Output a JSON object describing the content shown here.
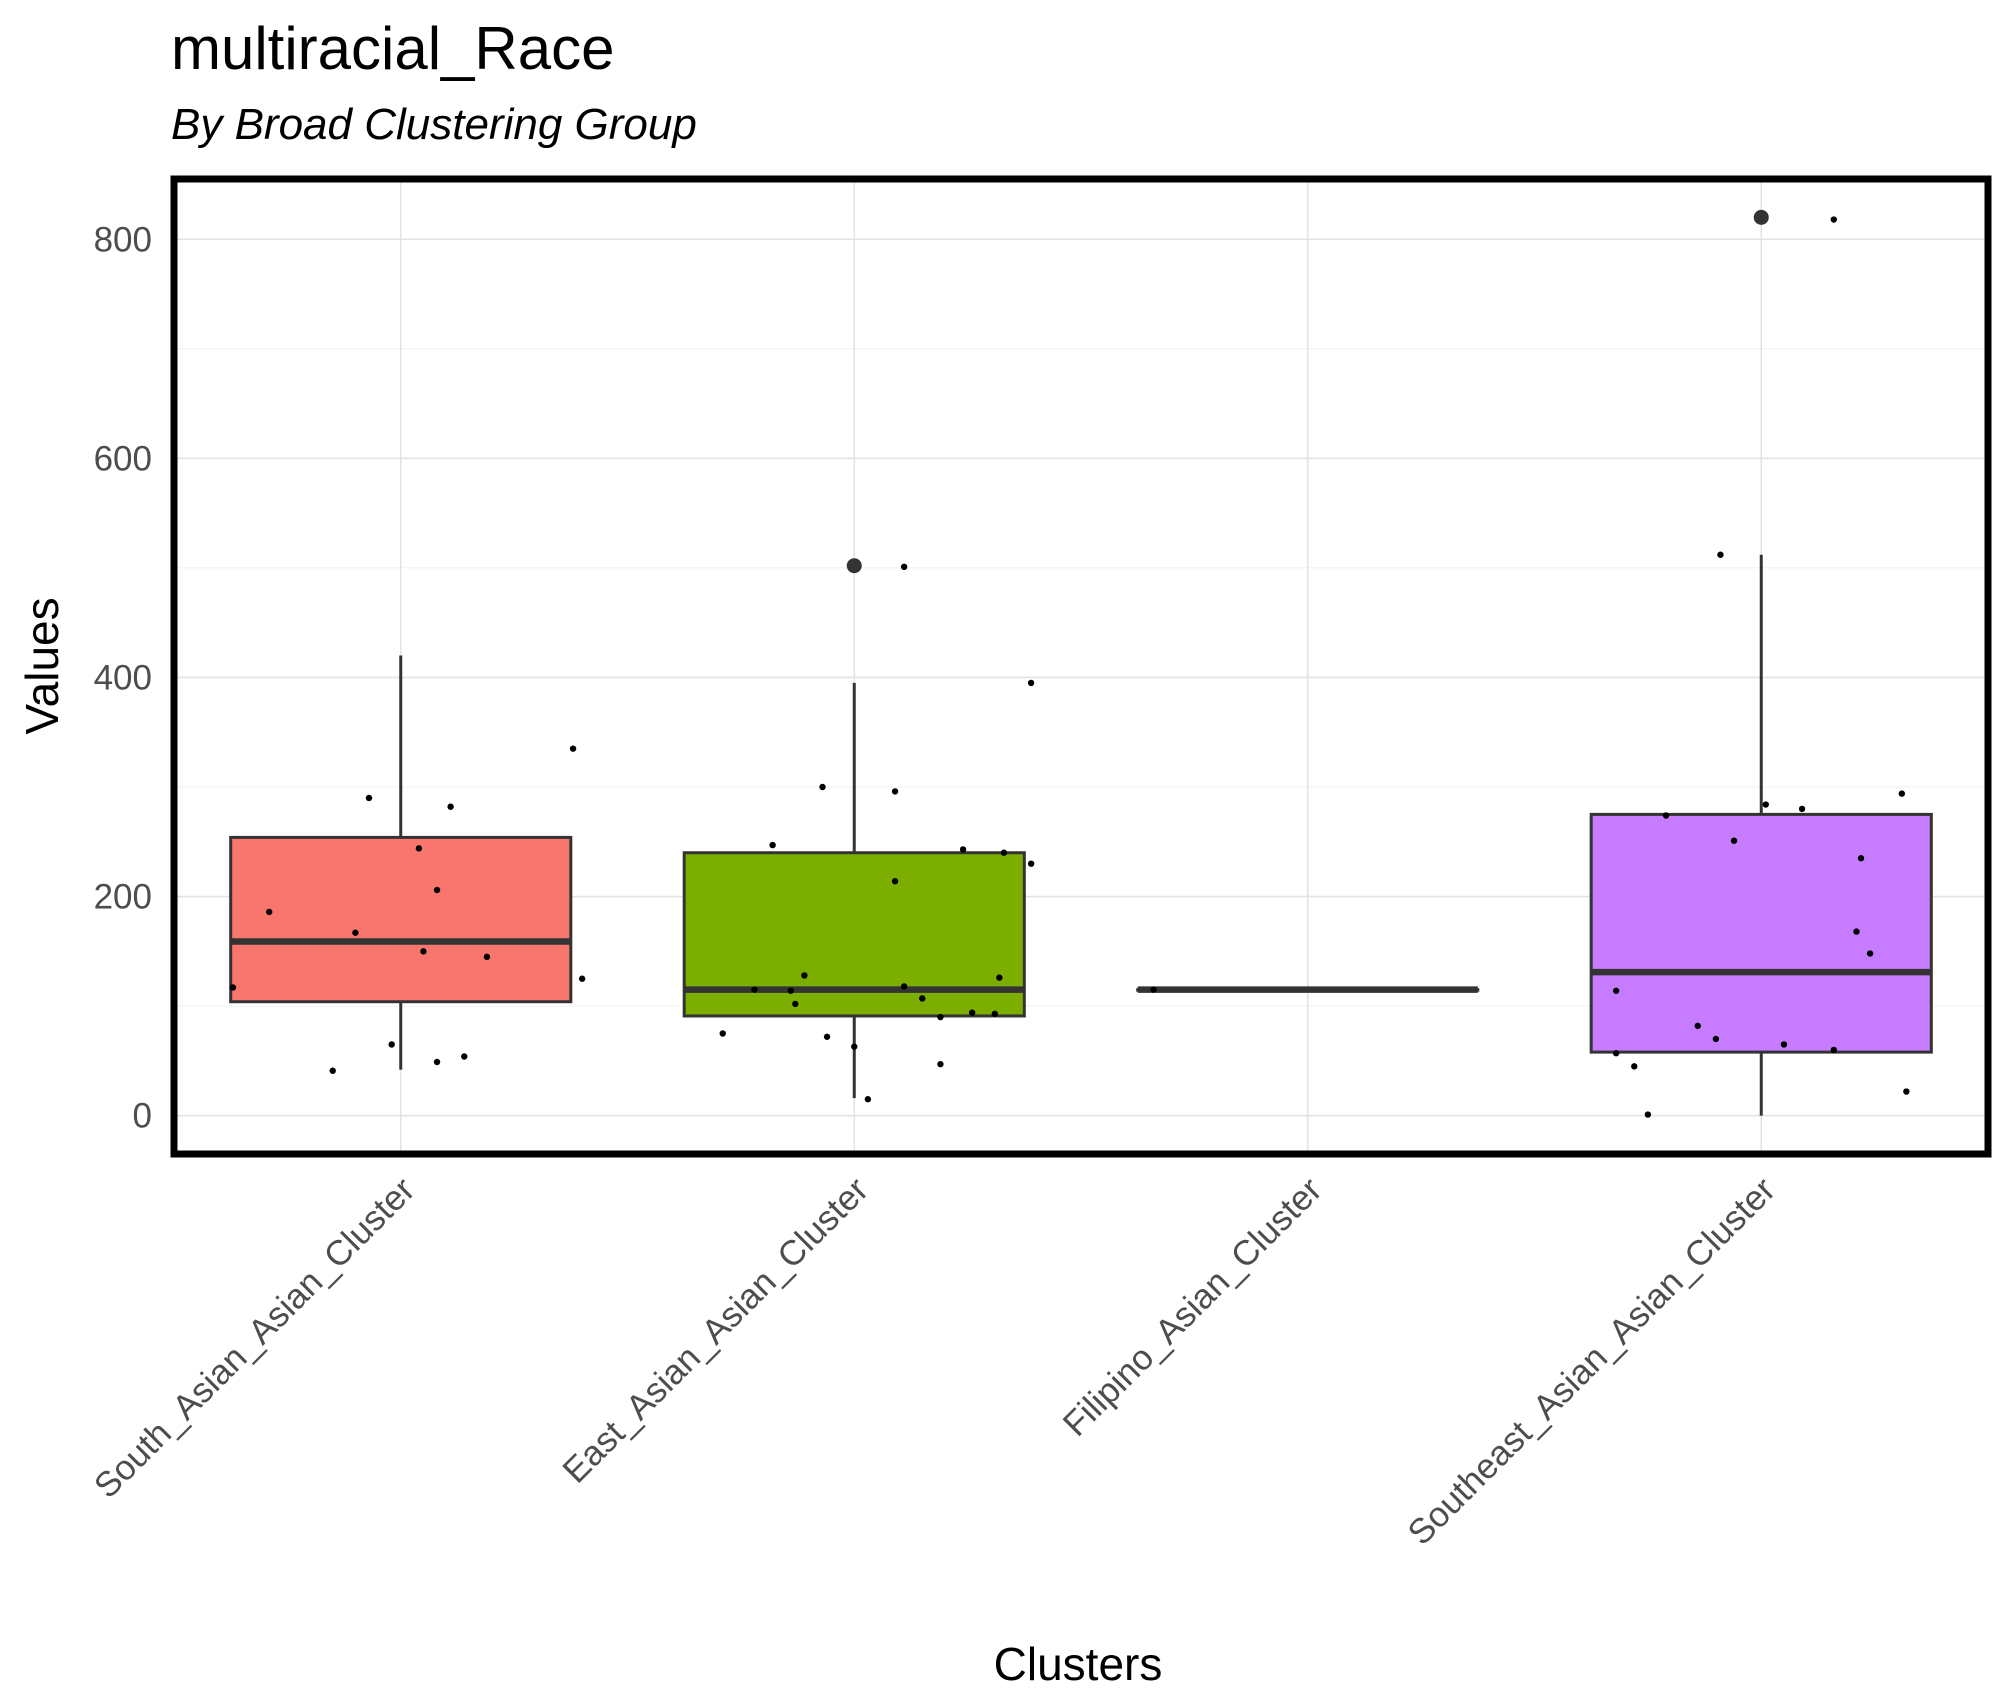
{
  "chart_data": {
    "type": "box",
    "title": "multiracial_Race",
    "subtitle": "By Broad Clustering Group",
    "xlabel": "Clusters",
    "ylabel": "Values",
    "ylim": [
      -35,
      855
    ],
    "yticks": [
      0,
      200,
      400,
      600,
      800
    ],
    "grid": true,
    "categories": [
      "South_Asian_Asian_Cluster",
      "East_Asian_Asian_Cluster",
      "Filipino_Asian_Cluster",
      "Southeast_Asian_Asian_Cluster"
    ],
    "boxes": [
      {
        "category": "South_Asian_Asian_Cluster",
        "color": "#F8766D",
        "min": 42,
        "q1": 104,
        "median": 159,
        "q3": 254,
        "max": 420,
        "outliers": []
      },
      {
        "category": "East_Asian_Asian_Cluster",
        "color": "#7CAE00",
        "min": 16,
        "q1": 91,
        "median": 115,
        "q3": 240,
        "max": 395,
        "outliers": [
          502
        ]
      },
      {
        "category": "Filipino_Asian_Cluster",
        "color": "#00BFC4",
        "min": 115,
        "q1": 115,
        "median": 115,
        "q3": 115,
        "max": 115,
        "outliers": []
      },
      {
        "category": "Southeast_Asian_Asian_Cluster",
        "color": "#C77CFF",
        "min": 0,
        "q1": 58,
        "median": 131,
        "q3": 275,
        "max": 512,
        "outliers": [
          820
        ]
      }
    ],
    "points": [
      {
        "category": 0,
        "offset": -0.37,
        "value": 117
      },
      {
        "category": 0,
        "offset": -0.29,
        "value": 186
      },
      {
        "category": 0,
        "offset": -0.15,
        "value": 41
      },
      {
        "category": 0,
        "offset": -0.07,
        "value": 290
      },
      {
        "category": 0,
        "offset": -0.1,
        "value": 167
      },
      {
        "category": 0,
        "offset": -0.02,
        "value": 65
      },
      {
        "category": 0,
        "offset": 0.04,
        "value": 244
      },
      {
        "category": 0,
        "offset": 0.05,
        "value": 150
      },
      {
        "category": 0,
        "offset": 0.08,
        "value": 206
      },
      {
        "category": 0,
        "offset": 0.08,
        "value": 49
      },
      {
        "category": 0,
        "offset": 0.11,
        "value": 282
      },
      {
        "category": 0,
        "offset": 0.14,
        "value": 54
      },
      {
        "category": 0,
        "offset": 0.19,
        "value": 145
      },
      {
        "category": 0,
        "offset": 0.38,
        "value": 335
      },
      {
        "category": 0,
        "offset": 0.4,
        "value": 125
      },
      {
        "category": 1,
        "offset": -0.29,
        "value": 75
      },
      {
        "category": 1,
        "offset": -0.22,
        "value": 115
      },
      {
        "category": 1,
        "offset": -0.18,
        "value": 247
      },
      {
        "category": 1,
        "offset": -0.14,
        "value": 114
      },
      {
        "category": 1,
        "offset": -0.13,
        "value": 102
      },
      {
        "category": 1,
        "offset": -0.11,
        "value": 128
      },
      {
        "category": 1,
        "offset": -0.07,
        "value": 300
      },
      {
        "category": 1,
        "offset": -0.06,
        "value": 72
      },
      {
        "category": 1,
        "offset": 0.0,
        "value": 63
      },
      {
        "category": 1,
        "offset": 0.03,
        "value": 15
      },
      {
        "category": 1,
        "offset": 0.09,
        "value": 214
      },
      {
        "category": 1,
        "offset": 0.09,
        "value": 296
      },
      {
        "category": 1,
        "offset": 0.11,
        "value": 118
      },
      {
        "category": 1,
        "offset": 0.11,
        "value": 501
      },
      {
        "category": 1,
        "offset": 0.15,
        "value": 107
      },
      {
        "category": 1,
        "offset": 0.19,
        "value": 47
      },
      {
        "category": 1,
        "offset": 0.19,
        "value": 90
      },
      {
        "category": 1,
        "offset": 0.24,
        "value": 243
      },
      {
        "category": 1,
        "offset": 0.26,
        "value": 94
      },
      {
        "category": 1,
        "offset": 0.31,
        "value": 93
      },
      {
        "category": 1,
        "offset": 0.33,
        "value": 240
      },
      {
        "category": 1,
        "offset": 0.32,
        "value": 126
      },
      {
        "category": 1,
        "offset": 0.39,
        "value": 395
      },
      {
        "category": 1,
        "offset": 0.39,
        "value": 230
      },
      {
        "category": 2,
        "offset": -0.34,
        "value": 115
      },
      {
        "category": 3,
        "offset": -0.32,
        "value": 114
      },
      {
        "category": 3,
        "offset": -0.32,
        "value": 57
      },
      {
        "category": 3,
        "offset": -0.28,
        "value": 45
      },
      {
        "category": 3,
        "offset": -0.25,
        "value": 1
      },
      {
        "category": 3,
        "offset": -0.21,
        "value": 274
      },
      {
        "category": 3,
        "offset": -0.14,
        "value": 82
      },
      {
        "category": 3,
        "offset": -0.1,
        "value": 70
      },
      {
        "category": 3,
        "offset": -0.09,
        "value": 512
      },
      {
        "category": 3,
        "offset": -0.06,
        "value": 251
      },
      {
        "category": 3,
        "offset": 0.01,
        "value": 284
      },
      {
        "category": 3,
        "offset": 0.05,
        "value": 65
      },
      {
        "category": 3,
        "offset": 0.09,
        "value": 280
      },
      {
        "category": 3,
        "offset": 0.16,
        "value": 818
      },
      {
        "category": 3,
        "offset": 0.16,
        "value": 60
      },
      {
        "category": 3,
        "offset": 0.21,
        "value": 168
      },
      {
        "category": 3,
        "offset": 0.22,
        "value": 235
      },
      {
        "category": 3,
        "offset": 0.24,
        "value": 148
      },
      {
        "category": 3,
        "offset": 0.31,
        "value": 294
      },
      {
        "category": 3,
        "offset": 0.32,
        "value": 22
      }
    ]
  }
}
